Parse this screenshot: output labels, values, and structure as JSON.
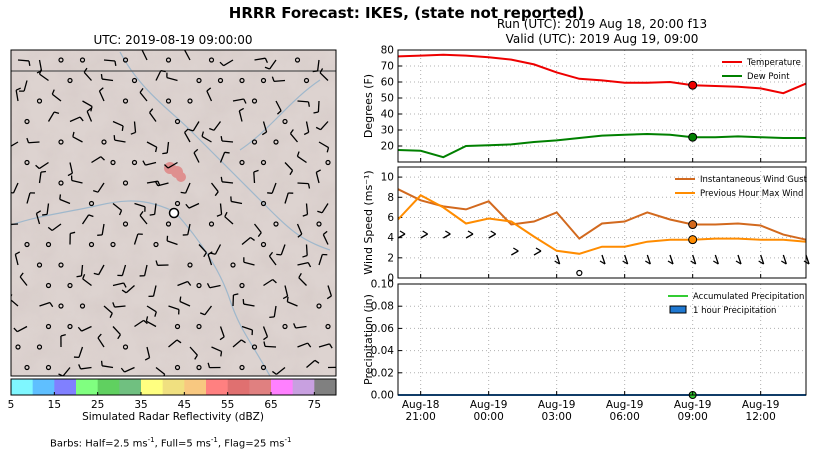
{
  "suptitle": "HRRR Forecast: IKES, (state not reported)",
  "map": {
    "title": "UTC: 2019-08-19 09:00:00",
    "colorbar_label": "Simulated Radar Reflectivity (dBZ)",
    "colorbar_ticks": [
      "5",
      "15",
      "25",
      "35",
      "45",
      "55",
      "65",
      "75"
    ],
    "colorbar_colors": [
      "#7ff7ff",
      "#5fbfff",
      "#8080ff",
      "#80ff80",
      "#60d060",
      "#70c080",
      "#ffff80",
      "#f0e080",
      "#f8c880",
      "#ff8080",
      "#e07070",
      "#e08080",
      "#ff80ff",
      "#c8a0e0",
      "#808080"
    ],
    "footnote_prefix": "Barbs: Half=2.5 ms",
    "footnote_mid1": ", Full=5 ms",
    "footnote_mid2": ", Flag=25 ms",
    "footnote_sup": "-1"
  },
  "run": {
    "line1": "Run (UTC): 2019 Aug 18, 20:00 f13",
    "line2": "Valid (UTC): 2019 Aug 19, 09:00"
  },
  "chart_data": [
    {
      "type": "line",
      "ylabel": "Degrees (F)",
      "ylim": [
        10,
        80
      ],
      "yticks": [
        20,
        30,
        40,
        50,
        60,
        70,
        80
      ],
      "grid": true,
      "legend_position": "top-right",
      "x_hours": [
        0,
        1,
        2,
        3,
        4,
        5,
        6,
        7,
        8,
        9,
        10,
        11,
        12,
        13,
        14,
        15,
        16,
        17,
        18
      ],
      "series": [
        {
          "name": "Temperature",
          "color": "#ee0000",
          "values": [
            76,
            76.5,
            77,
            76.5,
            75.5,
            74,
            71,
            66,
            62,
            61,
            59.5,
            59.5,
            60,
            58,
            57.5,
            57,
            56,
            53,
            59
          ]
        },
        {
          "name": "Dew Point",
          "color": "#008000",
          "values": [
            17.5,
            17,
            13,
            20,
            20.5,
            21,
            22.5,
            23.5,
            25,
            26.5,
            27,
            27.5,
            27,
            25.5,
            25.5,
            26,
            25.5,
            25,
            25
          ]
        }
      ],
      "highlight_index": 13
    },
    {
      "type": "line",
      "ylabel": "Wind Speed (ms⁻¹)",
      "ylim": [
        0,
        11
      ],
      "yticks": [
        0,
        2,
        4,
        6,
        8,
        10
      ],
      "grid": true,
      "legend_position": "top-right",
      "x_hours": [
        0,
        1,
        2,
        3,
        4,
        5,
        6,
        7,
        8,
        9,
        10,
        11,
        12,
        13,
        14,
        15,
        16,
        17,
        18
      ],
      "series": [
        {
          "name": "Instantaneous Wind Gust",
          "color": "#d2691e",
          "values": [
            8.8,
            7.7,
            7.1,
            6.8,
            7.6,
            5.3,
            5.6,
            6.5,
            3.9,
            5.4,
            5.6,
            6.5,
            5.8,
            5.3,
            5.3,
            5.4,
            5.2,
            4.3,
            3.8
          ]
        },
        {
          "name": "Previous Hour Max Wind",
          "color": "#ff8c00",
          "values": [
            5.8,
            8.2,
            7.0,
            5.4,
            5.9,
            5.6,
            4.1,
            2.7,
            2.4,
            3.1,
            3.1,
            3.6,
            3.8,
            3.8,
            3.9,
            3.9,
            3.8,
            3.8,
            3.6
          ]
        }
      ],
      "highlight_index": 13
    },
    {
      "type": "line",
      "ylabel": "Precipitation (in)",
      "ylim": [
        0,
        0.1
      ],
      "yticks": [
        "0.00",
        "0.02",
        "0.04",
        "0.06",
        "0.08",
        "0.10"
      ],
      "grid": true,
      "legend_position": "top-right",
      "x_ticks": [
        {
          "hour": 1,
          "line1": "Aug-18",
          "line2": "21:00"
        },
        {
          "hour": 4,
          "line1": "Aug-19",
          "line2": "00:00"
        },
        {
          "hour": 7,
          "line1": "Aug-19",
          "line2": "03:00"
        },
        {
          "hour": 10,
          "line1": "Aug-19",
          "line2": "06:00"
        },
        {
          "hour": 13,
          "line1": "Aug-19",
          "line2": "09:00"
        },
        {
          "hour": 16,
          "line1": "Aug-19",
          "line2": "12:00"
        }
      ],
      "series": [
        {
          "name": "Accumulated Precipitation",
          "color": "#33cc33",
          "values": [
            0,
            0,
            0,
            0,
            0,
            0,
            0,
            0,
            0,
            0,
            0,
            0,
            0,
            0,
            0,
            0,
            0,
            0,
            0
          ]
        },
        {
          "name": "1 hour Precipitation",
          "color": "#1f78d1",
          "values": [
            0,
            0,
            0,
            0,
            0,
            0,
            0,
            0,
            0,
            0,
            0,
            0,
            0,
            0,
            0,
            0,
            0,
            0,
            0
          ]
        }
      ],
      "highlight_index": 13
    }
  ]
}
